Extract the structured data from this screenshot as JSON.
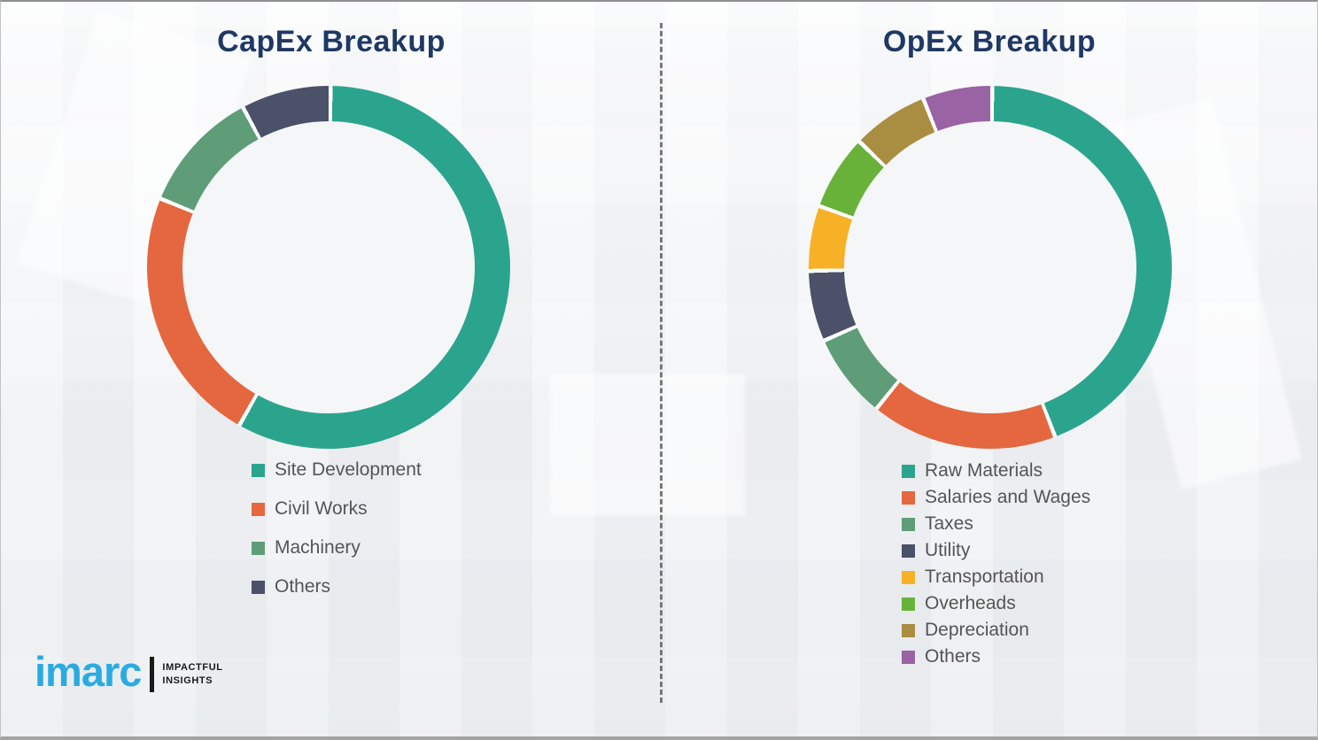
{
  "logo": {
    "brand": "imarc",
    "tagline_line1": "IMPACTFUL",
    "tagline_line2": "INSIGHTS",
    "brand_color": "#29abe2"
  },
  "styles": {
    "title_color": "#1f3864",
    "legend_text_color": "#555555",
    "background": "#f3f4f6",
    "segment_gap_color": "#ffffff"
  },
  "chart_data": [
    {
      "type": "pie",
      "subtype": "donut",
      "title": "CapEx Breakup",
      "unit": "percent",
      "start_angle_deg": 0,
      "direction": "clockwise",
      "legend_position": "bottom-left",
      "labels": [
        "Site Development",
        "Civil Works",
        "Machinery",
        "Others"
      ],
      "values": [
        58,
        23,
        11,
        8
      ],
      "colors": [
        "#2ba48e",
        "#e5673f",
        "#5f9d78",
        "#4a5168"
      ]
    },
    {
      "type": "pie",
      "subtype": "donut",
      "title": "OpEx Breakup",
      "unit": "percent",
      "start_angle_deg": 0,
      "direction": "clockwise",
      "legend_position": "bottom-left",
      "labels": [
        "Raw Materials",
        "Salaries and Wages",
        "Taxes",
        "Utility",
        "Transportation",
        "Overheads",
        "Depreciation",
        "Others"
      ],
      "values": [
        44,
        16.6,
        7.6,
        6.3,
        5.8,
        6.7,
        6.8,
        6.2
      ],
      "colors": [
        "#2ba48e",
        "#e5673f",
        "#5f9d78",
        "#4a5168",
        "#f6b127",
        "#69b23a",
        "#a98d40",
        "#9a63a3"
      ]
    }
  ]
}
